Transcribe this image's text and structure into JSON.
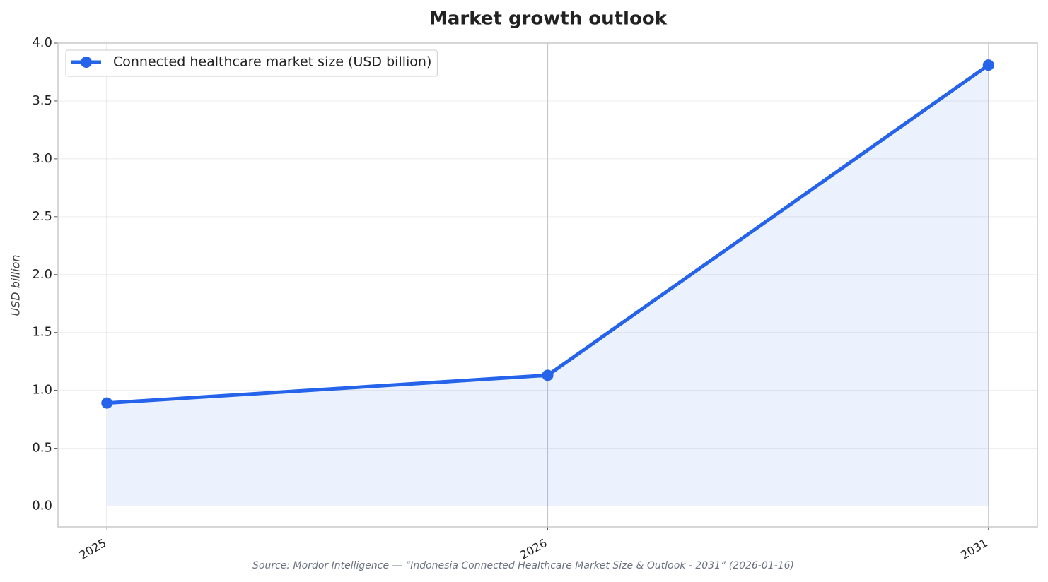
{
  "chart_data": {
    "type": "line",
    "title": "Market growth outlook",
    "y_label": "USD billion",
    "source": "Source: Mordor Intelligence — “Indonesia Connected Healthcare Market Size & Outlook - 2031” (2026-01-16)",
    "categories": [
      "2025",
      "2026",
      "2031"
    ],
    "series": [
      {
        "name": "Connected healthcare market size (USD billion)",
        "color": "#2563eb",
        "values": [
          0.89,
          1.13,
          3.81
        ]
      }
    ],
    "ylim": [
      -0.18,
      4.0
    ],
    "yticks": [
      {
        "value": 0,
        "label": "0.0"
      },
      0.5,
      {
        "value": 1,
        "label": "1.0"
      },
      1.5,
      {
        "value": 2,
        "label": "2.0"
      },
      2.5,
      {
        "value": 3,
        "label": "3.0"
      },
      3.5,
      {
        "value": 4,
        "label": "4.0"
      }
    ],
    "grid": true,
    "fill": true,
    "legend": "upper left"
  }
}
